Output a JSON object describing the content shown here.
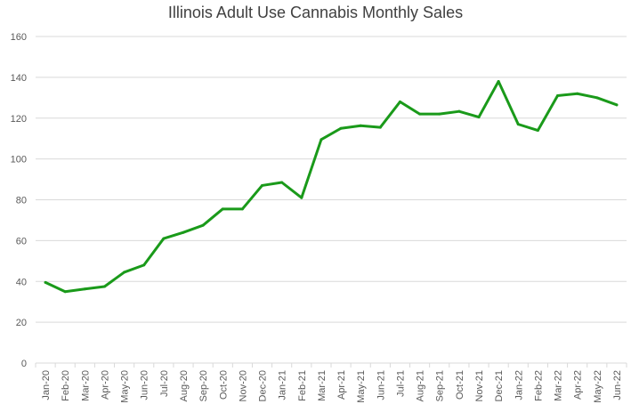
{
  "chart_data": {
    "type": "line",
    "title": "Illinois Adult Use Cannabis Monthly Sales",
    "xlabel": "",
    "ylabel": "",
    "ylim": [
      0,
      160
    ],
    "yticks": [
      0,
      20,
      40,
      60,
      80,
      100,
      120,
      140,
      160
    ],
    "grid": "horizontal",
    "legend": "none",
    "line_color": "#1a9a1a",
    "gridline_color": "#d9d9d9",
    "categories": [
      "Jan-20",
      "Feb-20",
      "Mar-20",
      "Apr-20",
      "May-20",
      "Jun-20",
      "Jul-20",
      "Aug-20",
      "Sep-20",
      "Oct-20",
      "Nov-20",
      "Dec-20",
      "Jan-21",
      "Feb-21",
      "Mar-21",
      "Apr-21",
      "May-21",
      "Jun-21",
      "Jul-21",
      "Aug-21",
      "Sep-21",
      "Oct-21",
      "Nov-21",
      "Dec-21",
      "Jan-22",
      "Feb-22",
      "Mar-22",
      "Apr-22",
      "May-22",
      "Jun-22"
    ],
    "series": [
      {
        "values": [
          39.5,
          35,
          36.3,
          37.5,
          44.5,
          48,
          61,
          64,
          67.5,
          75.5,
          75.5,
          87,
          88.5,
          81,
          109.5,
          115,
          116.3,
          115.5,
          128,
          122,
          122,
          123.3,
          120.5,
          138,
          117,
          114,
          131,
          132,
          130,
          126.5
        ]
      }
    ]
  }
}
